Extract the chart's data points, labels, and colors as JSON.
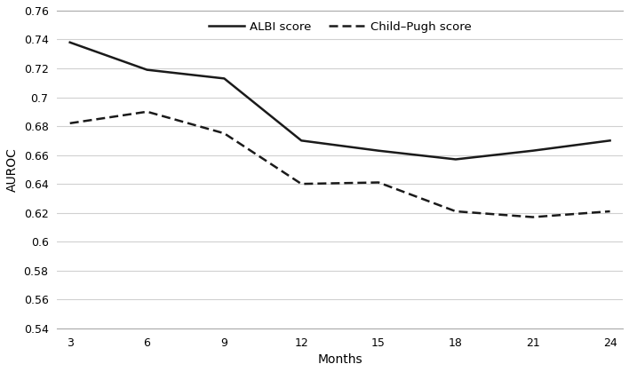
{
  "months": [
    3,
    6,
    9,
    12,
    15,
    18,
    21,
    24
  ],
  "albi_values": [
    0.738,
    0.719,
    0.713,
    0.67,
    0.663,
    0.657,
    0.663,
    0.67
  ],
  "child_pugh_values": [
    0.682,
    0.69,
    0.675,
    0.64,
    0.641,
    0.621,
    0.617,
    0.621
  ],
  "albi_label": "ALBI score",
  "child_pugh_label": "Child–Pugh score",
  "xlabel": "Months",
  "ylabel": "AUROC",
  "ylim": [
    0.54,
    0.76
  ],
  "yticks": [
    0.54,
    0.56,
    0.58,
    0.6,
    0.62,
    0.64,
    0.66,
    0.68,
    0.7,
    0.72,
    0.74,
    0.76
  ],
  "ytick_labels": [
    "0.54",
    "0.56",
    "0.58",
    "0.6",
    "0.62",
    "0.64",
    "0.66",
    "0.68",
    "0.7",
    "0.72",
    "0.74",
    "0.76"
  ],
  "line_color": "#1a1a1a",
  "background_color": "#ffffff",
  "grid_color": "#d0d0d0",
  "xlim": [
    2.5,
    24.5
  ]
}
